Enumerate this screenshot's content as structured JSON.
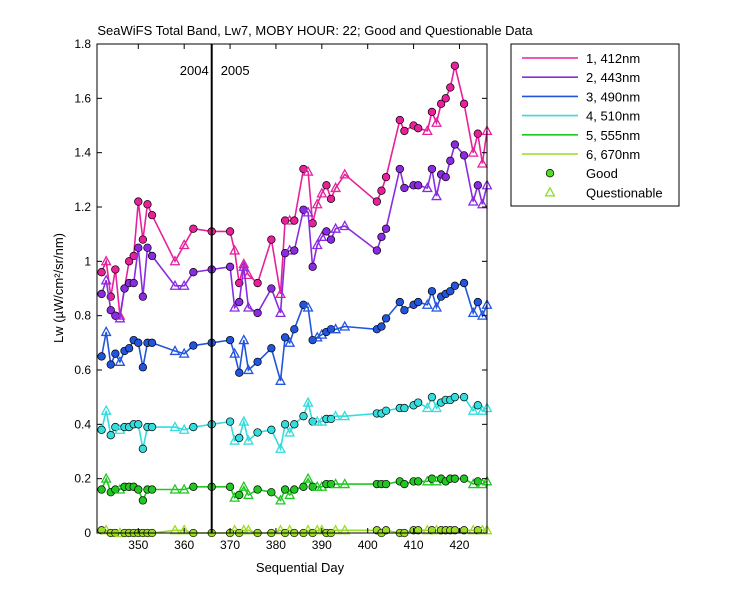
{
  "chart_data": {
    "type": "line",
    "title": "SeaWiFS Total Band,  Lw7, MOBY HOUR: 22;  Good and Questionable Data",
    "xlabel": "Sequential Day",
    "ylabel": "Lw (µW/cm²/sr/nm)",
    "xlim": [
      341,
      426
    ],
    "ylim": [
      0,
      1.8
    ],
    "xticks": [
      350,
      360,
      370,
      380,
      390,
      400,
      410,
      420
    ],
    "yticks": [
      0,
      0.2,
      0.4,
      0.6,
      0.8,
      1,
      1.2,
      1.4,
      1.6,
      1.8
    ],
    "xtick_labels": [
      "350",
      "360",
      "370",
      "380",
      "390",
      "400",
      "410",
      "420"
    ],
    "ytick_labels": [
      "0",
      "0.2",
      "0.4",
      "0.6",
      "0.8",
      "1",
      "1.2",
      "1.4",
      "1.6",
      "1.8"
    ],
    "grid": false,
    "legend_position": "outside-right-top",
    "year_boundary": {
      "x": 366,
      "left_label": "2004",
      "right_label": "2005"
    },
    "x": [
      342,
      343,
      344,
      345,
      346,
      347,
      348,
      349,
      350,
      351,
      352,
      353,
      358,
      360,
      362,
      366,
      370,
      371,
      372,
      373,
      374,
      376,
      379,
      381,
      382,
      383,
      384,
      386,
      387,
      388,
      389,
      390,
      391,
      392,
      393,
      395,
      402,
      403,
      404,
      407,
      408,
      410,
      411,
      413,
      414,
      415,
      416,
      417,
      418,
      419,
      421,
      423,
      424,
      425,
      426
    ],
    "quality": [
      "G",
      "Q",
      "G",
      "G",
      "Q",
      "G",
      "G",
      "G",
      "G",
      "G",
      "G",
      "G",
      "Q",
      "Q",
      "G",
      "G",
      "G",
      "Q",
      "G",
      "Q",
      "Q",
      "G",
      "G",
      "Q",
      "G",
      "Q",
      "G",
      "G",
      "Q",
      "G",
      "Q",
      "Q",
      "G",
      "G",
      "Q",
      "Q",
      "G",
      "G",
      "G",
      "G",
      "G",
      "G",
      "G",
      "Q",
      "G",
      "Q",
      "G",
      "G",
      "G",
      "G",
      "G",
      "Q",
      "G",
      "Q",
      "Q"
    ],
    "series": [
      {
        "name": "1, 412nm",
        "color": "#e8219b",
        "values": [
          0.96,
          1.0,
          0.87,
          0.97,
          0.8,
          0.9,
          1.0,
          1.02,
          1.22,
          1.08,
          1.21,
          1.17,
          1.0,
          1.06,
          1.12,
          1.11,
          1.11,
          1.04,
          0.92,
          0.99,
          0.95,
          0.92,
          1.08,
          0.88,
          1.15,
          1.15,
          1.15,
          1.34,
          1.33,
          1.14,
          1.21,
          1.25,
          1.28,
          1.23,
          1.27,
          1.32,
          1.22,
          1.26,
          1.31,
          1.52,
          1.48,
          1.5,
          1.49,
          1.48,
          1.55,
          1.51,
          1.58,
          1.6,
          1.64,
          1.72,
          1.58,
          1.4,
          1.47,
          1.36,
          1.48
        ]
      },
      {
        "name": "2, 443nm",
        "color": "#8a2be2",
        "values": [
          0.88,
          0.93,
          0.82,
          0.8,
          0.79,
          0.9,
          0.92,
          0.92,
          1.05,
          0.87,
          1.05,
          1.02,
          0.91,
          0.91,
          0.96,
          0.97,
          0.98,
          0.83,
          0.85,
          0.98,
          0.83,
          0.81,
          0.9,
          0.81,
          1.03,
          1.04,
          1.04,
          1.19,
          1.18,
          0.98,
          1.06,
          1.09,
          1.11,
          1.08,
          1.12,
          1.13,
          1.04,
          1.09,
          1.12,
          1.34,
          1.27,
          1.28,
          1.28,
          1.27,
          1.34,
          1.24,
          1.32,
          1.31,
          1.37,
          1.43,
          1.39,
          1.22,
          1.28,
          1.21,
          1.28
        ]
      },
      {
        "name": "3, 490nm",
        "color": "#2255dd",
        "values": [
          0.65,
          0.74,
          0.62,
          0.66,
          0.63,
          0.67,
          0.68,
          0.71,
          0.7,
          0.61,
          0.7,
          0.7,
          0.67,
          0.66,
          0.69,
          0.7,
          0.71,
          0.66,
          0.59,
          0.71,
          0.6,
          0.63,
          0.68,
          0.56,
          0.72,
          0.7,
          0.75,
          0.84,
          0.83,
          0.71,
          0.72,
          0.73,
          0.74,
          0.75,
          0.75,
          0.76,
          0.75,
          0.76,
          0.79,
          0.85,
          0.82,
          0.84,
          0.85,
          0.84,
          0.89,
          0.83,
          0.87,
          0.88,
          0.89,
          0.91,
          0.92,
          0.81,
          0.85,
          0.8,
          0.84
        ]
      },
      {
        "name": "4, 510nm",
        "color": "#33dddd",
        "values": [
          0.38,
          0.45,
          0.36,
          0.39,
          0.38,
          0.39,
          0.39,
          0.4,
          0.4,
          0.31,
          0.39,
          0.39,
          0.39,
          0.38,
          0.39,
          0.4,
          0.41,
          0.34,
          0.35,
          0.41,
          0.34,
          0.37,
          0.38,
          0.31,
          0.4,
          0.37,
          0.4,
          0.43,
          0.48,
          0.41,
          0.41,
          0.41,
          0.42,
          0.42,
          0.43,
          0.43,
          0.44,
          0.44,
          0.45,
          0.46,
          0.46,
          0.47,
          0.48,
          0.46,
          0.5,
          0.46,
          0.48,
          0.49,
          0.49,
          0.5,
          0.5,
          0.45,
          0.47,
          0.45,
          0.46
        ]
      },
      {
        "name": "5, 555nm",
        "color": "#22c822",
        "values": [
          0.16,
          0.2,
          0.15,
          0.16,
          0.16,
          0.17,
          0.17,
          0.17,
          0.16,
          0.12,
          0.16,
          0.16,
          0.16,
          0.16,
          0.17,
          0.17,
          0.17,
          0.13,
          0.14,
          0.17,
          0.14,
          0.16,
          0.15,
          0.12,
          0.16,
          0.14,
          0.16,
          0.17,
          0.2,
          0.17,
          0.17,
          0.17,
          0.18,
          0.18,
          0.18,
          0.18,
          0.18,
          0.18,
          0.18,
          0.19,
          0.18,
          0.19,
          0.19,
          0.19,
          0.2,
          0.19,
          0.2,
          0.19,
          0.2,
          0.2,
          0.2,
          0.18,
          0.19,
          0.18,
          0.19
        ]
      },
      {
        "name": "6, 670nm",
        "color": "#99dd22",
        "values": [
          0.01,
          0.01,
          0.0,
          0.0,
          0.0,
          0.0,
          0.0,
          0.0,
          0.0,
          0.0,
          0.0,
          0.0,
          0.01,
          0.01,
          0.0,
          0.0,
          0.0,
          0.01,
          0.0,
          0.01,
          0.01,
          0.0,
          0.0,
          0.01,
          0.0,
          0.01,
          0.0,
          0.0,
          0.01,
          0.0,
          0.01,
          0.01,
          0.0,
          0.0,
          0.01,
          0.01,
          0.01,
          0.0,
          0.01,
          0.0,
          0.0,
          0.01,
          0.01,
          0.01,
          0.01,
          0.01,
          0.01,
          0.01,
          0.01,
          0.01,
          0.01,
          0.01,
          0.01,
          0.01,
          0.01
        ]
      }
    ],
    "markers": [
      {
        "name": "Good",
        "shape": "circle"
      },
      {
        "name": "Questionable",
        "shape": "triangle"
      }
    ]
  }
}
